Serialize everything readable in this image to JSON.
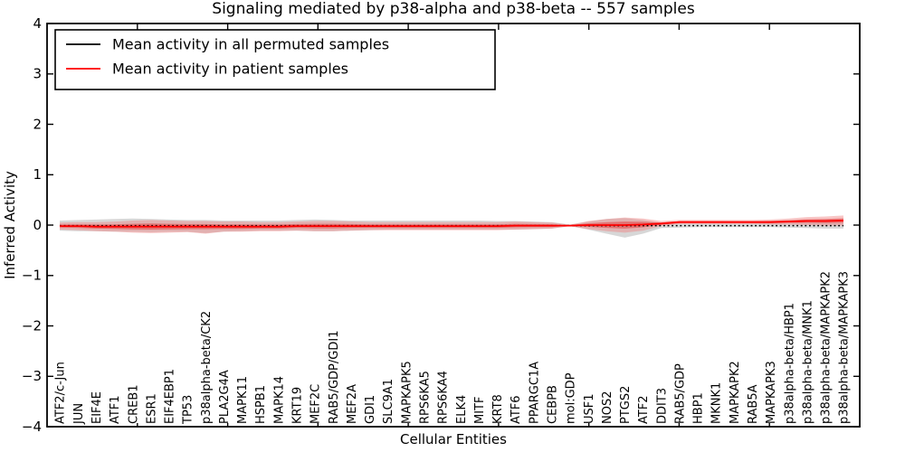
{
  "title": "Signaling mediated by p38-alpha and p38-beta -- 557 samples",
  "legend": {
    "items": [
      {
        "label": "Mean activity in all permuted samples",
        "color": "#000000"
      },
      {
        "label": "Mean activity in patient samples",
        "color": "#ff0000"
      }
    ]
  },
  "axes": {
    "xlabel": "Cellular Entities",
    "ylabel": "Inferred Activity",
    "ytick_labels": [
      "4",
      "3",
      "2",
      "1",
      "0",
      "−1",
      "−2",
      "−3",
      "−4"
    ]
  },
  "chart_data": {
    "type": "line",
    "title": "Signaling mediated by p38-alpha and p38-beta -- 557 samples",
    "xlabel": "Cellular Entities",
    "ylabel": "Inferred Activity",
    "ylim": [
      -4,
      4
    ],
    "yticks": [
      4,
      3,
      2,
      1,
      0,
      -1,
      -2,
      -3,
      -4
    ],
    "grid": false,
    "legend_position": "upper left",
    "categories": [
      "ATF2/c-Jun",
      "JUN",
      "EIF4E",
      "ATF1",
      "CREB1",
      "ESR1",
      "EIF4EBP1",
      "TP53",
      "p38alpha-beta/CK2",
      "PLA2G4A",
      "MAPK11",
      "HSPB1",
      "MAPK14",
      "KRT19",
      "MEF2C",
      "RAB5/GDP/GDI1",
      "MEF2A",
      "GDI1",
      "SLC9A1",
      "MAPKAPK5",
      "RPS6KA5",
      "RPS6KA4",
      "ELK4",
      "MITF",
      "KRT8",
      "ATF6",
      "PPARGC1A",
      "CEBPB",
      "mol:GDP",
      "USF1",
      "NOS2",
      "PTGS2",
      "ATF2",
      "DDIT3",
      "RAB5/GDP",
      "HBP1",
      "MKNK1",
      "MAPKAPK2",
      "RAB5A",
      "MAPKAPK3",
      "p38alpha-beta/HBP1",
      "p38alpha-beta/MNK1",
      "p38alpha-beta/MAPKAPK2",
      "p38alpha-beta/MAPKAPK3"
    ],
    "series": [
      {
        "name": "Mean activity in all permuted samples",
        "color": "#000000",
        "linestyle": "dotted",
        "linewidth": 1.5,
        "values": [
          -0.01,
          -0.01,
          -0.01,
          -0.01,
          -0.01,
          -0.01,
          -0.01,
          -0.01,
          -0.01,
          -0.01,
          -0.01,
          -0.01,
          -0.01,
          -0.01,
          -0.01,
          -0.01,
          -0.01,
          -0.01,
          -0.01,
          -0.01,
          -0.01,
          -0.01,
          -0.01,
          -0.01,
          -0.01,
          -0.01,
          -0.01,
          -0.01,
          -0.01,
          -0.01,
          -0.01,
          -0.01,
          -0.01,
          -0.01,
          -0.01,
          -0.01,
          -0.01,
          -0.01,
          -0.01,
          -0.01,
          -0.01,
          -0.01,
          -0.01,
          -0.01
        ]
      },
      {
        "name": "Mean activity in patient samples",
        "color": "#ff0000",
        "linestyle": "solid",
        "linewidth": 1.8,
        "values": [
          -0.02,
          -0.02,
          -0.03,
          -0.03,
          -0.03,
          -0.03,
          -0.03,
          -0.03,
          -0.03,
          -0.03,
          -0.03,
          -0.03,
          -0.03,
          -0.02,
          -0.02,
          -0.02,
          -0.02,
          -0.02,
          -0.02,
          -0.02,
          -0.02,
          -0.02,
          -0.02,
          -0.02,
          -0.02,
          -0.01,
          -0.01,
          -0.01,
          -0.01,
          0.0,
          0.0,
          0.0,
          0.01,
          0.03,
          0.06,
          0.06,
          0.06,
          0.06,
          0.06,
          0.06,
          0.07,
          0.08,
          0.08,
          0.09
        ]
      }
    ],
    "bands": [
      {
        "name": "permuted-samples-band",
        "color": "#b0b0b0",
        "opacity": 0.5,
        "upper": [
          0.09,
          0.1,
          0.11,
          0.12,
          0.13,
          0.12,
          0.11,
          0.1,
          0.1,
          0.09,
          0.09,
          0.09,
          0.09,
          0.1,
          0.11,
          0.1,
          0.09,
          0.09,
          0.09,
          0.09,
          0.09,
          0.09,
          0.09,
          0.09,
          0.08,
          0.08,
          0.07,
          0.06,
          0.01,
          0.07,
          0.12,
          0.14,
          0.1,
          0.04,
          0.03,
          0.03,
          0.03,
          0.03,
          0.03,
          0.04,
          0.04,
          0.05,
          0.06,
          0.06
        ],
        "lower": [
          -0.11,
          -0.12,
          -0.12,
          -0.13,
          -0.13,
          -0.14,
          -0.13,
          -0.13,
          -0.16,
          -0.13,
          -0.12,
          -0.11,
          -0.11,
          -0.11,
          -0.12,
          -0.12,
          -0.11,
          -0.1,
          -0.09,
          -0.09,
          -0.09,
          -0.09,
          -0.09,
          -0.09,
          -0.09,
          -0.09,
          -0.08,
          -0.07,
          -0.02,
          -0.09,
          -0.17,
          -0.25,
          -0.17,
          -0.06,
          -0.05,
          -0.04,
          -0.04,
          -0.04,
          -0.04,
          -0.04,
          -0.05,
          -0.06,
          -0.07,
          -0.07
        ]
      },
      {
        "name": "patient-samples-band-outer",
        "color": "#f08080",
        "opacity": 0.45,
        "upper": [
          0.05,
          0.06,
          0.06,
          0.07,
          0.09,
          0.1,
          0.09,
          0.08,
          0.08,
          0.07,
          0.07,
          0.06,
          0.06,
          0.07,
          0.08,
          0.08,
          0.07,
          0.06,
          0.06,
          0.06,
          0.06,
          0.06,
          0.06,
          0.06,
          0.06,
          0.07,
          0.06,
          0.05,
          0.005,
          0.08,
          0.12,
          0.15,
          0.13,
          0.08,
          0.1,
          0.1,
          0.1,
          0.1,
          0.1,
          0.11,
          0.13,
          0.16,
          0.17,
          0.19
        ],
        "lower": [
          -0.09,
          -0.1,
          -0.12,
          -0.13,
          -0.15,
          -0.16,
          -0.15,
          -0.14,
          -0.17,
          -0.13,
          -0.13,
          -0.12,
          -0.12,
          -0.11,
          -0.12,
          -0.12,
          -0.11,
          -0.1,
          -0.1,
          -0.1,
          -0.1,
          -0.1,
          -0.1,
          -0.1,
          -0.1,
          -0.09,
          -0.08,
          -0.07,
          -0.02,
          -0.08,
          -0.12,
          -0.15,
          -0.11,
          -0.02,
          0.02,
          0.02,
          0.02,
          0.02,
          0.02,
          0.01,
          0.01,
          0.0,
          -0.01,
          -0.01
        ]
      },
      {
        "name": "patient-samples-band-inner",
        "color": "#e04040",
        "opacity": 0.55,
        "upper": [
          0.01,
          0.015,
          0.01,
          0.015,
          0.025,
          0.03,
          0.025,
          0.02,
          0.02,
          0.015,
          0.015,
          0.01,
          0.01,
          0.02,
          0.025,
          0.025,
          0.02,
          0.015,
          0.015,
          0.015,
          0.015,
          0.015,
          0.015,
          0.015,
          0.015,
          0.025,
          0.02,
          0.017,
          -0.003,
          0.035,
          0.055,
          0.07,
          0.065,
          0.052,
          0.078,
          0.078,
          0.078,
          0.078,
          0.078,
          0.082,
          0.097,
          0.115,
          0.12,
          0.135
        ],
        "lower": [
          -0.05,
          -0.055,
          -0.07,
          -0.075,
          -0.085,
          -0.09,
          -0.085,
          -0.08,
          -0.08,
          -0.075,
          -0.075,
          -0.07,
          -0.07,
          -0.06,
          -0.065,
          -0.065,
          -0.06,
          -0.055,
          -0.055,
          -0.055,
          -0.055,
          -0.055,
          -0.055,
          -0.055,
          -0.055,
          -0.045,
          -0.04,
          -0.037,
          -0.017,
          -0.035,
          -0.055,
          -0.07,
          -0.045,
          0.008,
          0.042,
          0.042,
          0.042,
          0.042,
          0.042,
          0.038,
          0.043,
          0.045,
          0.04,
          0.045
        ]
      }
    ]
  }
}
